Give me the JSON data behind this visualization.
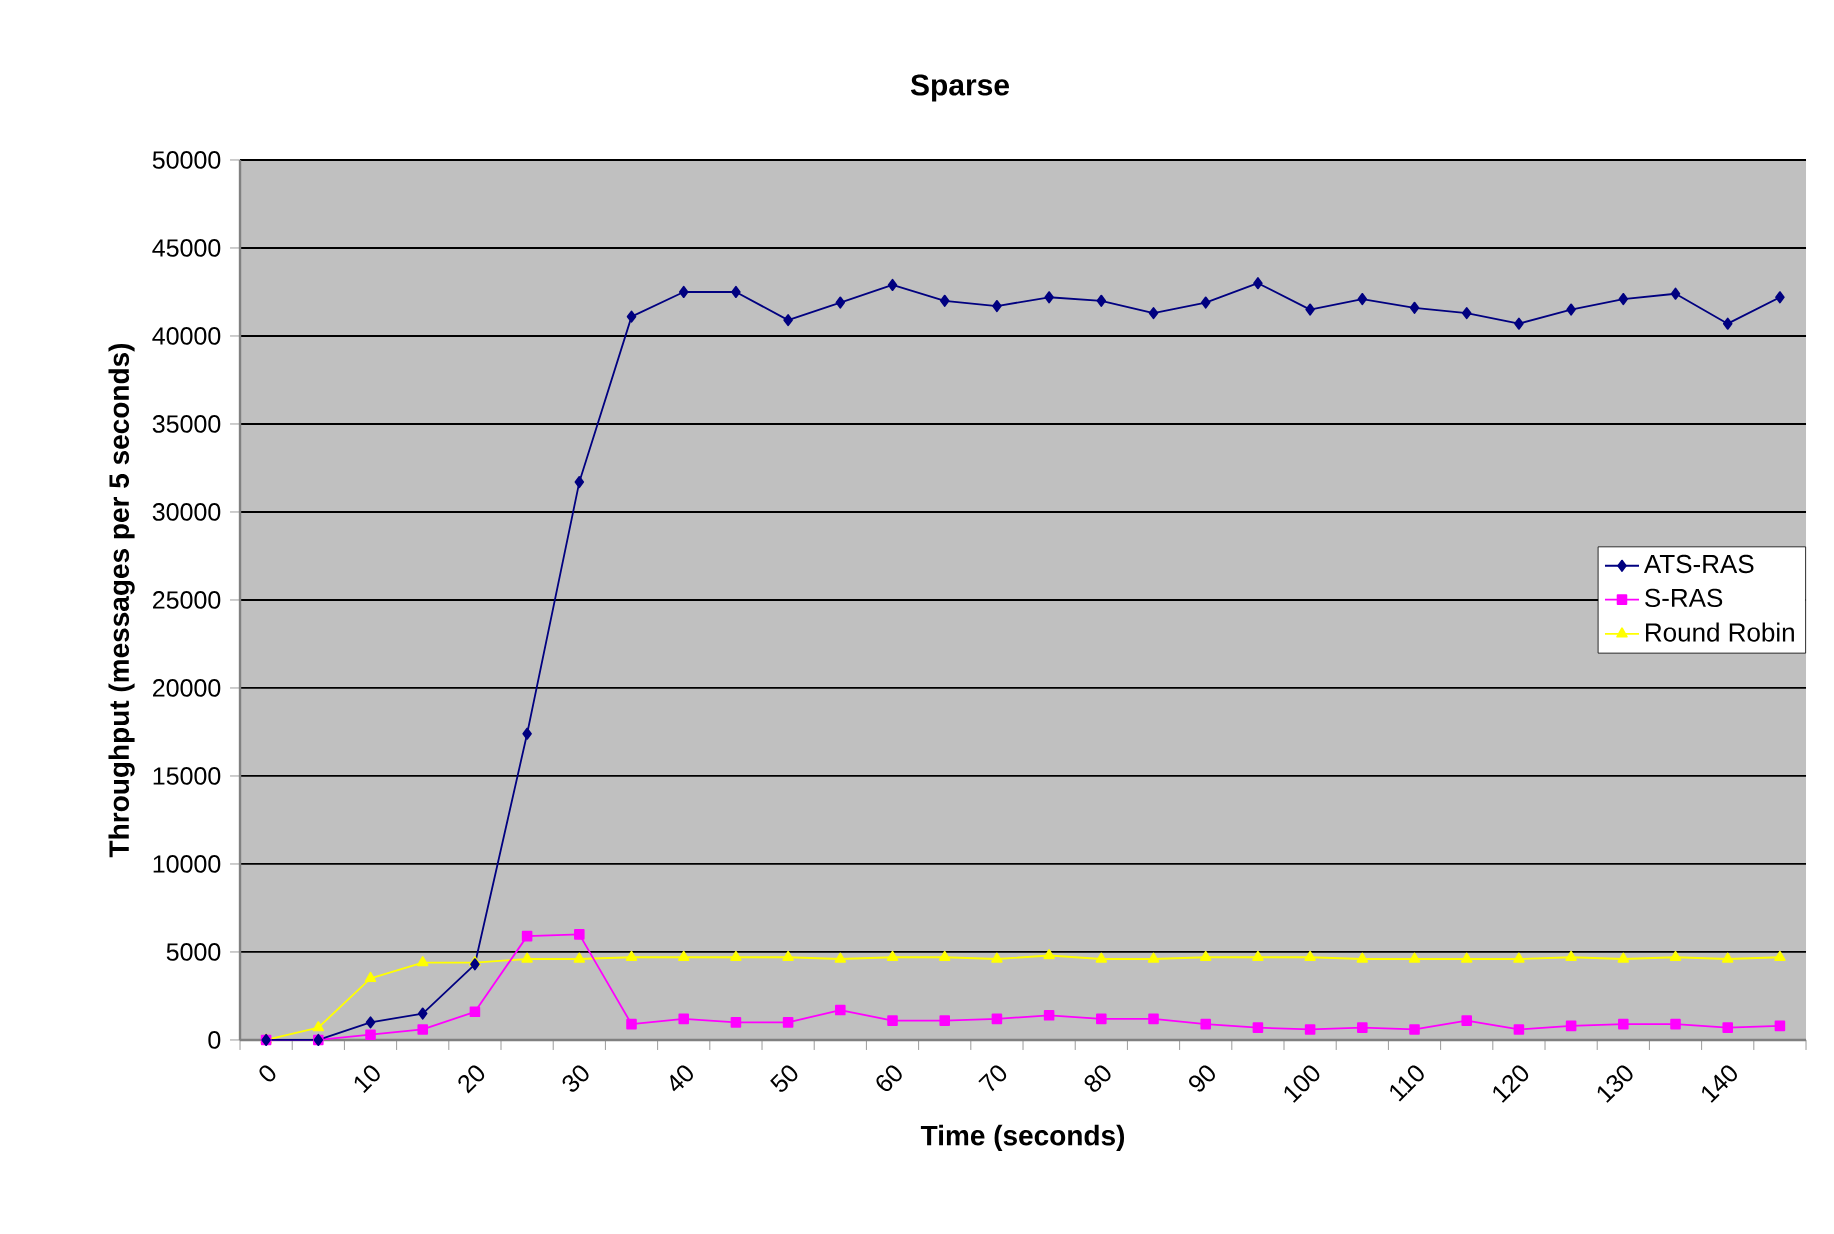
{
  "chart_data": {
    "type": "line",
    "title": "Sparse",
    "xlabel": "Time (seconds)",
    "ylabel": "Throughput (messages per 5 seconds)",
    "categories": [
      "0",
      null,
      "10",
      null,
      "20",
      null,
      "30",
      null,
      "40",
      null,
      "50",
      null,
      "60",
      null,
      "70",
      null,
      "80",
      null,
      "90",
      null,
      "100",
      null,
      "110",
      null,
      "120",
      null,
      "130",
      null,
      "140",
      null
    ],
    "series": [
      {
        "name": "ATS-RAS",
        "color": "#000080",
        "marker": "diamond",
        "values": [
          0,
          0,
          1000,
          1500,
          4300,
          17400,
          31700,
          41100,
          42500,
          42500,
          40900,
          41900,
          42900,
          42000,
          41700,
          42200,
          42000,
          41300,
          41900,
          43000,
          41500,
          42100,
          41600,
          41300,
          40700,
          41500,
          42100,
          42400,
          40700,
          42200
        ]
      },
      {
        "name": "S-RAS",
        "color": "#ff00ff",
        "marker": "square",
        "values": [
          0,
          0,
          300,
          600,
          1600,
          5900,
          6000,
          900,
          1200,
          1000,
          1000,
          1700,
          1100,
          1100,
          1200,
          1400,
          1200,
          1200,
          900,
          700,
          600,
          700,
          600,
          1100,
          600,
          800,
          900,
          900,
          700,
          800
        ]
      },
      {
        "name": "Round Robin",
        "color": "#ffff00",
        "marker": "triangle",
        "values": [
          0,
          700,
          3500,
          4400,
          4400,
          4600,
          4600,
          4700,
          4700,
          4700,
          4700,
          4600,
          4700,
          4700,
          4600,
          4800,
          4600,
          4600,
          4700,
          4700,
          4700,
          4600,
          4600,
          4600,
          4600,
          4700,
          4600,
          4700,
          4600,
          4700
        ]
      }
    ],
    "ylim": [
      0,
      50000
    ],
    "yticks": [
      0,
      5000,
      10000,
      15000,
      20000,
      25000,
      30000,
      35000,
      40000,
      45000,
      50000
    ],
    "grid": "y",
    "legend": "right",
    "line_style": "solid"
  }
}
